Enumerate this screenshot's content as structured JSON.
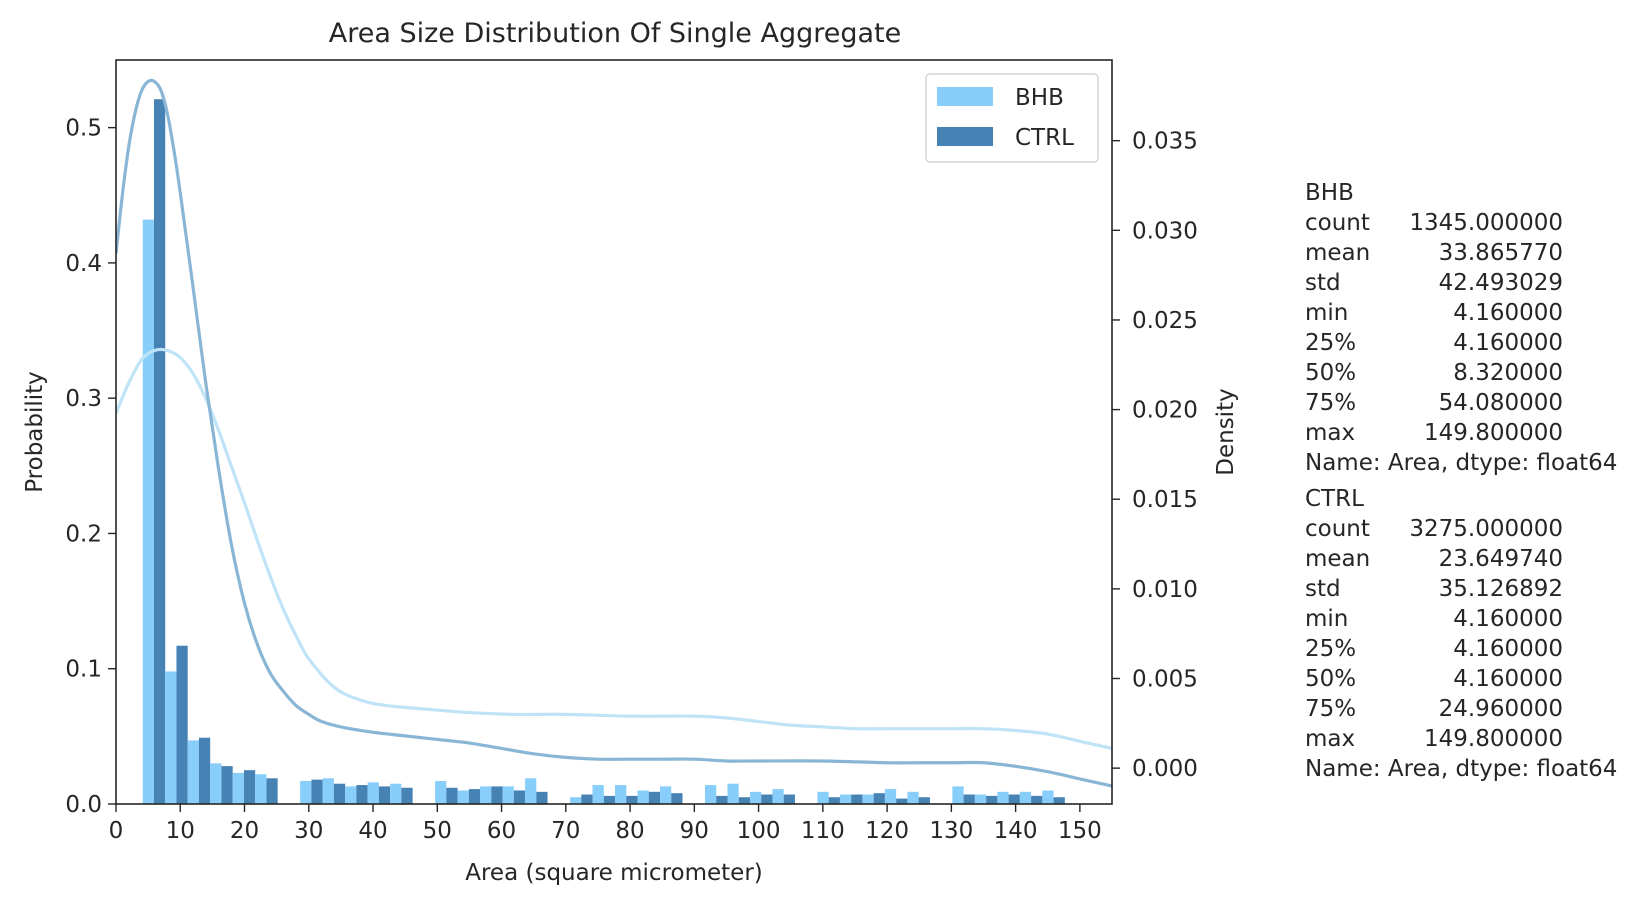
{
  "chart_data": {
    "type": "bar",
    "title": "Area Size Distribution Of Single Aggregate",
    "xlabel": "Area (square micrometer)",
    "ylabel": "Probability",
    "y2label": "Density",
    "xlim": [
      0,
      155
    ],
    "ylim": [
      0,
      0.55
    ],
    "y2lim": [
      -0.002,
      0.0395
    ],
    "xticks": [
      "0",
      "10",
      "20",
      "30",
      "40",
      "50",
      "60",
      "70",
      "80",
      "90",
      "100",
      "110",
      "120",
      "130",
      "140",
      "150"
    ],
    "yticks": [
      "0.0",
      "0.1",
      "0.2",
      "0.3",
      "0.4",
      "0.5"
    ],
    "y2ticks": [
      "0.000",
      "0.005",
      "0.010",
      "0.015",
      "0.020",
      "0.025",
      "0.030",
      "0.035"
    ],
    "legend": {
      "position": "top-right",
      "entries": [
        "BHB",
        "CTRL"
      ]
    },
    "grid": false,
    "bin_width": 3.5,
    "bin_left_edges": [
      4.16,
      7.66,
      11.16,
      14.66,
      18.16,
      21.66,
      28.66,
      32.16,
      35.66,
      39.16,
      42.66,
      49.66,
      53.16,
      56.66,
      60.16,
      63.66,
      70.66,
      74.16,
      77.66,
      81.16,
      84.66,
      91.66,
      95.16,
      98.66,
      102.16,
      109.16,
      112.66,
      116.16,
      119.66,
      123.16,
      130.16,
      133.66,
      137.16,
      140.66,
      144.16
    ],
    "series": [
      {
        "name": "BHB",
        "color": "#87cefa",
        "values": [
          0.432,
          0.098,
          0.047,
          0.03,
          0.023,
          0.022,
          0.017,
          0.019,
          0.013,
          0.016,
          0.015,
          0.017,
          0.01,
          0.013,
          0.013,
          0.019,
          0.005,
          0.014,
          0.014,
          0.01,
          0.013,
          0.014,
          0.015,
          0.009,
          0.011,
          0.009,
          0.007,
          0.007,
          0.011,
          0.009,
          0.013,
          0.007,
          0.009,
          0.009,
          0.01
        ]
      },
      {
        "name": "CTRL",
        "color": "#4682b4",
        "values": [
          0.521,
          0.117,
          0.049,
          0.028,
          0.025,
          0.019,
          0.018,
          0.015,
          0.014,
          0.013,
          0.012,
          0.012,
          0.011,
          0.013,
          0.01,
          0.009,
          0.007,
          0.006,
          0.006,
          0.009,
          0.008,
          0.006,
          0.005,
          0.007,
          0.007,
          0.005,
          0.007,
          0.008,
          0.004,
          0.005,
          0.007,
          0.006,
          0.007,
          0.006,
          0.005
        ]
      }
    ],
    "density": [
      {
        "name": "BHB",
        "color": "#bfe3f7",
        "points": [
          [
            0,
            0.0198
          ],
          [
            2,
            0.0215
          ],
          [
            4,
            0.0228
          ],
          [
            6,
            0.0233
          ],
          [
            8,
            0.0233
          ],
          [
            10,
            0.0229
          ],
          [
            12,
            0.022
          ],
          [
            14,
            0.0206
          ],
          [
            16,
            0.0188
          ],
          [
            18,
            0.0168
          ],
          [
            20,
            0.0148
          ],
          [
            22,
            0.0127
          ],
          [
            24,
            0.0107
          ],
          [
            26,
            0.0089
          ],
          [
            28,
            0.0074
          ],
          [
            30,
            0.0061
          ],
          [
            34,
            0.0045
          ],
          [
            38,
            0.0038
          ],
          [
            42,
            0.0035
          ],
          [
            48,
            0.0033
          ],
          [
            55,
            0.0031
          ],
          [
            62,
            0.003
          ],
          [
            70,
            0.003
          ],
          [
            80,
            0.0029
          ],
          [
            90,
            0.0029
          ],
          [
            95,
            0.0028
          ],
          [
            100,
            0.0026
          ],
          [
            105,
            0.0024
          ],
          [
            110,
            0.0023
          ],
          [
            115,
            0.0022
          ],
          [
            120,
            0.0022
          ],
          [
            125,
            0.0022
          ],
          [
            130,
            0.0022
          ],
          [
            135,
            0.0022
          ],
          [
            140,
            0.0021
          ],
          [
            145,
            0.0019
          ],
          [
            150,
            0.0015
          ],
          [
            155,
            0.0011
          ]
        ]
      },
      {
        "name": "CTRL",
        "color": "#8ab6d6",
        "points": [
          [
            0,
            0.0287
          ],
          [
            1,
            0.032
          ],
          [
            2,
            0.0347
          ],
          [
            3,
            0.0366
          ],
          [
            4,
            0.0378
          ],
          [
            5,
            0.0383
          ],
          [
            6,
            0.0383
          ],
          [
            7,
            0.0378
          ],
          [
            8,
            0.0365
          ],
          [
            9,
            0.0345
          ],
          [
            10,
            0.0321
          ],
          [
            12,
            0.0268
          ],
          [
            14,
            0.0214
          ],
          [
            16,
            0.0166
          ],
          [
            18,
            0.0124
          ],
          [
            20,
            0.0092
          ],
          [
            22,
            0.0069
          ],
          [
            24,
            0.0053
          ],
          [
            26,
            0.0043
          ],
          [
            28,
            0.0035
          ],
          [
            30,
            0.003
          ],
          [
            32,
            0.0026
          ],
          [
            35,
            0.0023
          ],
          [
            40,
            0.002
          ],
          [
            45,
            0.0018
          ],
          [
            50,
            0.0016
          ],
          [
            55,
            0.0014
          ],
          [
            60,
            0.0011
          ],
          [
            65,
            0.0008
          ],
          [
            70,
            0.0006
          ],
          [
            75,
            0.0005
          ],
          [
            80,
            0.0005
          ],
          [
            85,
            0.0005
          ],
          [
            90,
            0.0005
          ],
          [
            95,
            0.0004
          ],
          [
            100,
            0.0004
          ],
          [
            110,
            0.0004
          ],
          [
            120,
            0.0003
          ],
          [
            125,
            0.0003
          ],
          [
            130,
            0.0003
          ],
          [
            135,
            0.0003
          ],
          [
            140,
            0.0001
          ],
          [
            145,
            -0.0002
          ],
          [
            150,
            -0.0006
          ],
          [
            155,
            -0.001
          ]
        ]
      }
    ]
  },
  "stats": [
    {
      "title": "BHB",
      "rows": [
        [
          "count",
          "1345.000000"
        ],
        [
          "mean",
          "33.865770"
        ],
        [
          "std",
          "42.493029"
        ],
        [
          "min",
          "4.160000"
        ],
        [
          "25%",
          "4.160000"
        ],
        [
          "50%",
          "8.320000"
        ],
        [
          "75%",
          "54.080000"
        ],
        [
          "max",
          "149.800000"
        ]
      ],
      "footer": "Name: Area, dtype: float64"
    },
    {
      "title": "CTRL",
      "rows": [
        [
          "count",
          "3275.000000"
        ],
        [
          "mean",
          "23.649740"
        ],
        [
          "std",
          "35.126892"
        ],
        [
          "min",
          "4.160000"
        ],
        [
          "25%",
          "4.160000"
        ],
        [
          "50%",
          "4.160000"
        ],
        [
          "75%",
          "24.960000"
        ],
        [
          "max",
          "149.800000"
        ]
      ],
      "footer": "Name: Area, dtype: float64"
    }
  ]
}
